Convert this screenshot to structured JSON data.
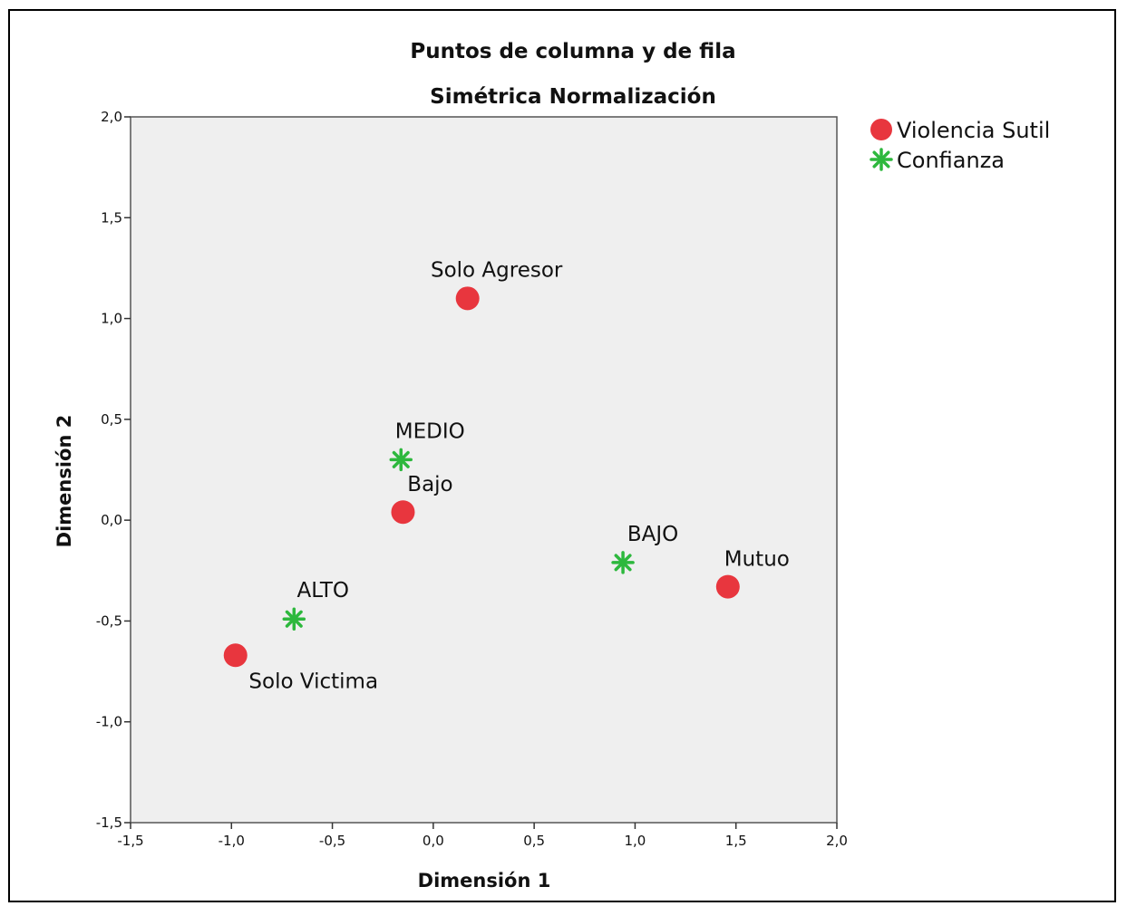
{
  "chart_data": {
    "type": "scatter",
    "title": "Puntos de columna y de fila",
    "subtitle": "Simétrica Normalización",
    "xlabel": "Dimensión 1",
    "ylabel": "Dimensión 2",
    "xlim": [
      -1.5,
      2.0
    ],
    "ylim": [
      -1.5,
      2.0
    ],
    "xticks": [
      -1.5,
      -1.0,
      -0.5,
      0.0,
      0.5,
      1.0,
      1.5,
      2.0
    ],
    "yticks": [
      -1.5,
      -1.0,
      -0.5,
      0.0,
      0.5,
      1.0,
      1.5,
      2.0
    ],
    "xtick_labels": [
      "-1,5",
      "-1,0",
      "-0,5",
      "0,0",
      "0,5",
      "1,0",
      "1,5",
      "2,0"
    ],
    "ytick_labels": [
      "-1,5",
      "-1,0",
      "-0,5",
      "0,0",
      "0,5",
      "1,0",
      "1,5",
      "2,0"
    ],
    "grid": false,
    "legend": "right",
    "colors": {
      "plot_bg": "#efefef",
      "violencia": "#e8363e",
      "confianza": "#2db83d"
    },
    "series": [
      {
        "name": "Violencia Sutil",
        "marker": "circle",
        "points": [
          {
            "label": "Solo Agresor",
            "x": 0.17,
            "y": 1.1
          },
          {
            "label": "Bajo",
            "x": -0.15,
            "y": 0.04
          },
          {
            "label": "Mutuo",
            "x": 1.46,
            "y": -0.33
          },
          {
            "label": "Solo Victima",
            "x": -0.98,
            "y": -0.67
          }
        ]
      },
      {
        "name": "Confianza",
        "marker": "star",
        "points": [
          {
            "label": "MEDIO",
            "x": -0.16,
            "y": 0.3
          },
          {
            "label": "BAJO",
            "x": 0.94,
            "y": -0.21
          },
          {
            "label": "ALTO",
            "x": -0.69,
            "y": -0.49
          }
        ]
      }
    ]
  }
}
